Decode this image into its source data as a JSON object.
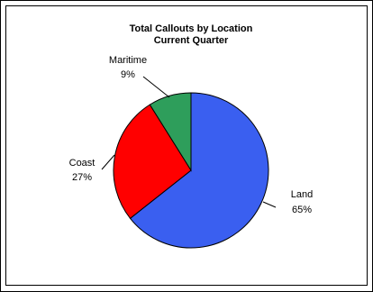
{
  "chart_data": {
    "type": "pie",
    "title": "Total Callouts by Location",
    "subtitle": "Current Quarter",
    "slices": [
      {
        "label": "Land",
        "percent_label": "65%",
        "value": 65,
        "color": "#3a5ff0"
      },
      {
        "label": "Coast",
        "percent_label": "27%",
        "value": 27,
        "color": "#ff0000"
      },
      {
        "label": "Maritime",
        "percent_label": "9%",
        "value": 9,
        "color": "#2e9e5b"
      }
    ]
  }
}
